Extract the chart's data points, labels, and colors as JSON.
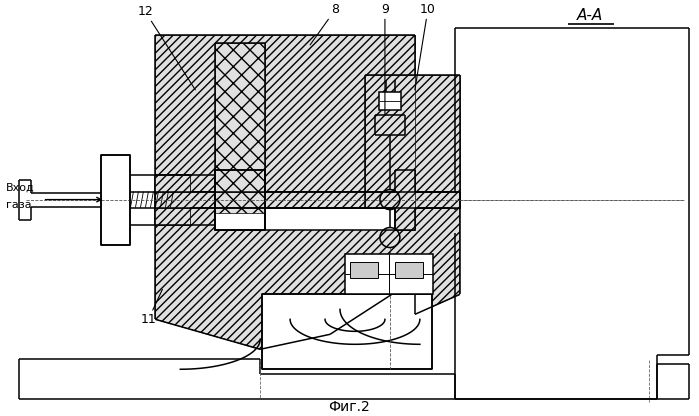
{
  "background": "#ffffff",
  "lc": "#000000",
  "lw": 1.1,
  "thin": 0.6,
  "hatch_fc": "#e0e0e0",
  "fig_label": "Фиг.2",
  "AA_label": "А-А",
  "inlet1": "Вход",
  "inlet2": "газа",
  "fs": 9,
  "fs_AA": 11,
  "fs_fig": 10,
  "fs_inlet": 8
}
